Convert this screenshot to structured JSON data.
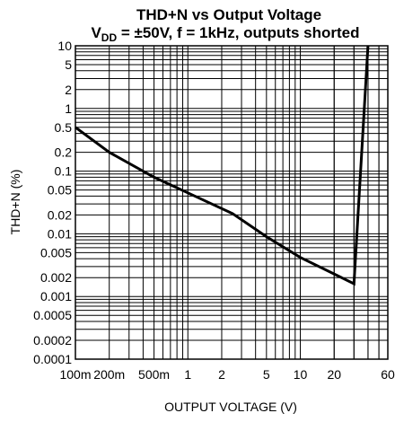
{
  "chart_data": {
    "type": "line",
    "title_line1": "THD+N vs Output Voltage",
    "title_line2_prefix": "V",
    "title_line2_subscript": "DD",
    "title_line2_suffix": " = ±50V, f = 1kHz, outputs shorted",
    "xlabel": "OUTPUT VOLTAGE (V)",
    "ylabel": "THD+N (%)",
    "x_scale": "log",
    "y_scale": "log",
    "xlim": [
      0.1,
      60
    ],
    "ylim": [
      0.0001,
      10
    ],
    "grid": true,
    "x_ticks": [
      {
        "value": 0.1,
        "label": "100m"
      },
      {
        "value": 0.2,
        "label": "200m"
      },
      {
        "value": 0.5,
        "label": "500m"
      },
      {
        "value": 1,
        "label": "1"
      },
      {
        "value": 2,
        "label": "2"
      },
      {
        "value": 5,
        "label": "5"
      },
      {
        "value": 10,
        "label": "10"
      },
      {
        "value": 20,
        "label": "20"
      },
      {
        "value": 60,
        "label": "60"
      }
    ],
    "y_ticks": [
      {
        "value": 10,
        "label": "10"
      },
      {
        "value": 5,
        "label": "5"
      },
      {
        "value": 2,
        "label": "2"
      },
      {
        "value": 1,
        "label": "1"
      },
      {
        "value": 0.5,
        "label": "0.5"
      },
      {
        "value": 0.2,
        "label": "0.2"
      },
      {
        "value": 0.1,
        "label": "0.1"
      },
      {
        "value": 0.05,
        "label": "0.05"
      },
      {
        "value": 0.02,
        "label": "0.02"
      },
      {
        "value": 0.01,
        "label": "0.01"
      },
      {
        "value": 0.005,
        "label": "0.005"
      },
      {
        "value": 0.002,
        "label": "0.002"
      },
      {
        "value": 0.001,
        "label": "0.001"
      },
      {
        "value": 0.0005,
        "label": "0.0005"
      },
      {
        "value": 0.0002,
        "label": "0.0002"
      },
      {
        "value": 0.0001,
        "label": "0.0001"
      }
    ],
    "series": [
      {
        "x": [
          0.1,
          0.2,
          0.5,
          1,
          2.5,
          5,
          10,
          30,
          40
        ],
        "y": [
          0.5,
          0.2,
          0.08,
          0.045,
          0.021,
          0.009,
          0.0042,
          0.0016,
          10
        ]
      }
    ],
    "line_color": "#000000",
    "grid_color": "#000000"
  }
}
